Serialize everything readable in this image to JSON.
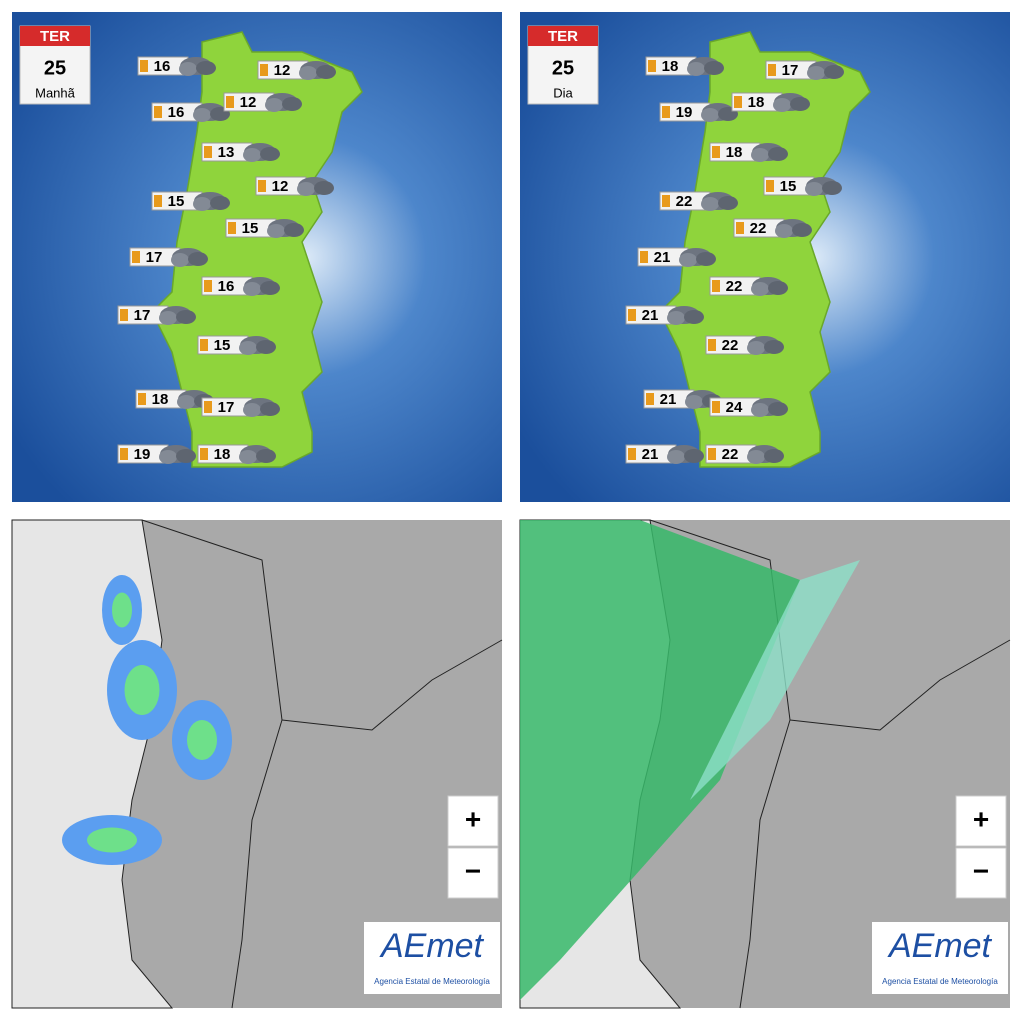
{
  "panels": [
    {
      "badge": {
        "day": "TER",
        "date": "25",
        "period": "Manhã"
      },
      "temperatures": [
        16,
        12,
        16,
        12,
        13,
        12,
        15,
        15,
        17,
        16,
        17,
        15,
        18,
        17,
        19,
        18
      ]
    },
    {
      "badge": {
        "day": "TER",
        "date": "25",
        "period": "Dia"
      },
      "temperatures": [
        18,
        17,
        19,
        18,
        18,
        15,
        22,
        22,
        21,
        22,
        21,
        22,
        21,
        24,
        21,
        22
      ]
    }
  ],
  "maps": [
    {
      "zoom_in": "+",
      "zoom_out": "−",
      "logo": "AEmet",
      "agency": "Agencia Estatal de Meteorología"
    },
    {
      "zoom_in": "+",
      "zoom_out": "−",
      "logo": "AEmet",
      "agency": "Agencia Estatal de Meteorología"
    }
  ]
}
